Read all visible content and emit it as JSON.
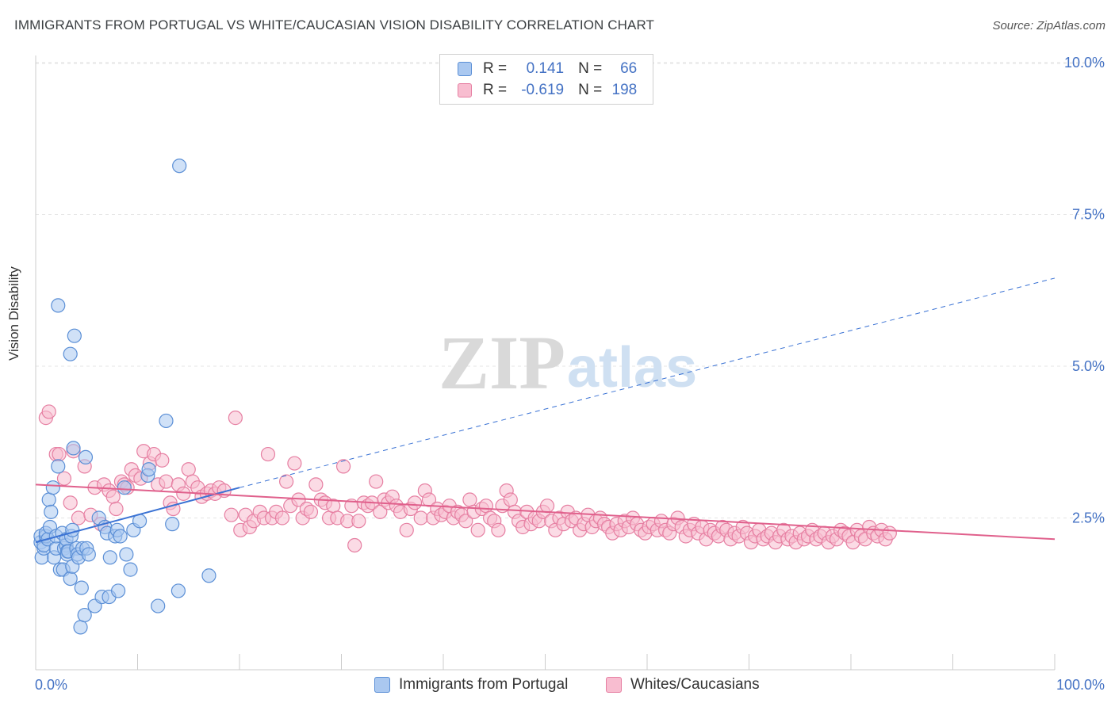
{
  "title": "IMMIGRANTS FROM PORTUGAL VS WHITE/CAUCASIAN VISION DISABILITY CORRELATION CHART",
  "source": "Source: ZipAtlas.com",
  "watermark": {
    "zip": "ZIP",
    "atlas": "atlas"
  },
  "legend": [
    {
      "r_label": "R =",
      "r_value": "0.141",
      "n_label": "N =",
      "n_value": "66",
      "fill": "#aac8f0",
      "stroke": "#5b8fd6"
    },
    {
      "r_label": "R =",
      "r_value": "-0.619",
      "n_label": "N =",
      "n_value": "198",
      "fill": "#f8bdd0",
      "stroke": "#e67fa2"
    }
  ],
  "bottom_legend": [
    "Immigrants from Portugal",
    "Whites/Caucasians"
  ],
  "chart_data": {
    "type": "scatter",
    "title": "IMMIGRANTS FROM PORTUGAL VS WHITE/CAUCASIAN VISION DISABILITY CORRELATION CHART",
    "xlabel": "",
    "ylabel": "Vision Disability",
    "xlim": [
      0,
      100
    ],
    "ylim": [
      0,
      10.5
    ],
    "x_tick_labels": [
      "0.0%",
      "100.0%"
    ],
    "y_ticks": [
      2.5,
      5.0,
      7.5,
      10.0
    ],
    "y_tick_labels": [
      "2.5%",
      "5.0%",
      "7.5%",
      "10.0%"
    ],
    "grid": "horizontal dashed",
    "series": [
      {
        "name": "Immigrants from Portugal",
        "color": "#5b8fd6",
        "fill": "#aac8f0",
        "trend": {
          "x0": 0,
          "y0": 2.1,
          "x1": 20,
          "y1": 3.0,
          "dashed_to_x": 100,
          "dashed_to_y": 6.45
        },
        "points": [
          [
            0.5,
            2.1
          ],
          [
            0.5,
            2.2
          ],
          [
            0.6,
            1.85
          ],
          [
            0.8,
            2.0
          ],
          [
            0.8,
            2.05
          ],
          [
            1.0,
            2.2
          ],
          [
            1.0,
            2.25
          ],
          [
            1.2,
            2.15
          ],
          [
            1.3,
            2.8
          ],
          [
            1.4,
            2.35
          ],
          [
            1.5,
            2.6
          ],
          [
            1.7,
            3.0
          ],
          [
            1.8,
            1.85
          ],
          [
            2.0,
            2.0
          ],
          [
            2.0,
            2.2
          ],
          [
            2.2,
            3.35
          ],
          [
            2.2,
            6.0
          ],
          [
            2.4,
            1.65
          ],
          [
            2.6,
            2.25
          ],
          [
            2.7,
            1.65
          ],
          [
            2.8,
            2.0
          ],
          [
            3.0,
            2.05
          ],
          [
            3.0,
            2.15
          ],
          [
            3.1,
            1.95
          ],
          [
            3.1,
            1.9
          ],
          [
            3.2,
            1.95
          ],
          [
            3.4,
            1.5
          ],
          [
            3.4,
            5.2
          ],
          [
            3.5,
            2.2
          ],
          [
            3.6,
            2.3
          ],
          [
            3.6,
            1.7
          ],
          [
            3.7,
            3.65
          ],
          [
            3.8,
            5.5
          ],
          [
            4.0,
            2.0
          ],
          [
            4.1,
            1.9
          ],
          [
            4.2,
            1.85
          ],
          [
            4.4,
            0.7
          ],
          [
            4.5,
            1.35
          ],
          [
            4.6,
            2.0
          ],
          [
            4.8,
            0.9
          ],
          [
            4.9,
            3.5
          ],
          [
            5.0,
            2.0
          ],
          [
            5.2,
            1.9
          ],
          [
            5.8,
            1.05
          ],
          [
            6.2,
            2.5
          ],
          [
            6.5,
            1.2
          ],
          [
            6.8,
            2.35
          ],
          [
            7.0,
            2.25
          ],
          [
            7.2,
            1.2
          ],
          [
            7.3,
            1.85
          ],
          [
            7.8,
            2.2
          ],
          [
            8.0,
            2.3
          ],
          [
            8.1,
            1.3
          ],
          [
            8.3,
            2.2
          ],
          [
            8.7,
            3.0
          ],
          [
            8.9,
            1.9
          ],
          [
            9.3,
            1.65
          ],
          [
            9.6,
            2.3
          ],
          [
            10.2,
            2.45
          ],
          [
            11.0,
            3.2
          ],
          [
            11.1,
            3.3
          ],
          [
            12.0,
            1.05
          ],
          [
            12.8,
            4.1
          ],
          [
            13.4,
            2.4
          ],
          [
            14.0,
            1.3
          ],
          [
            14.1,
            8.3
          ],
          [
            17.0,
            1.55
          ]
        ]
      },
      {
        "name": "Whites/Caucasians",
        "color": "#e67fa2",
        "fill": "#f8bdd0",
        "trend": {
          "x0": 0,
          "y0": 3.05,
          "x1": 100,
          "y1": 2.15
        },
        "points": [
          [
            1.0,
            4.15
          ],
          [
            1.3,
            4.25
          ],
          [
            2.0,
            3.55
          ],
          [
            2.3,
            3.55
          ],
          [
            2.8,
            3.15
          ],
          [
            3.4,
            2.75
          ],
          [
            3.7,
            3.6
          ],
          [
            4.2,
            2.5
          ],
          [
            4.8,
            3.35
          ],
          [
            5.4,
            2.55
          ],
          [
            5.8,
            3.0
          ],
          [
            6.4,
            2.4
          ],
          [
            6.7,
            3.05
          ],
          [
            7.2,
            2.95
          ],
          [
            7.6,
            2.85
          ],
          [
            7.9,
            2.65
          ],
          [
            8.4,
            3.1
          ],
          [
            8.7,
            3.05
          ],
          [
            9.0,
            3.0
          ],
          [
            9.4,
            3.3
          ],
          [
            9.8,
            3.2
          ],
          [
            10.3,
            3.15
          ],
          [
            10.6,
            3.6
          ],
          [
            11.2,
            3.4
          ],
          [
            11.6,
            3.55
          ],
          [
            12.0,
            3.05
          ],
          [
            12.4,
            3.45
          ],
          [
            12.8,
            3.1
          ],
          [
            13.2,
            2.75
          ],
          [
            13.5,
            2.65
          ],
          [
            14.0,
            3.05
          ],
          [
            14.5,
            2.9
          ],
          [
            15.0,
            3.3
          ],
          [
            15.4,
            3.1
          ],
          [
            15.9,
            3.0
          ],
          [
            16.3,
            2.85
          ],
          [
            16.8,
            2.9
          ],
          [
            17.2,
            2.95
          ],
          [
            17.6,
            2.9
          ],
          [
            18.0,
            3.0
          ],
          [
            18.5,
            2.95
          ],
          [
            19.2,
            2.55
          ],
          [
            19.6,
            4.15
          ],
          [
            20.1,
            2.3
          ],
          [
            20.6,
            2.55
          ],
          [
            21.0,
            2.35
          ],
          [
            21.4,
            2.45
          ],
          [
            22.0,
            2.6
          ],
          [
            22.4,
            2.5
          ],
          [
            22.8,
            3.55
          ],
          [
            23.2,
            2.5
          ],
          [
            23.6,
            2.6
          ],
          [
            24.2,
            2.5
          ],
          [
            24.6,
            3.1
          ],
          [
            25.0,
            2.7
          ],
          [
            25.4,
            3.4
          ],
          [
            25.8,
            2.8
          ],
          [
            26.2,
            2.5
          ],
          [
            26.6,
            2.65
          ],
          [
            27.0,
            2.6
          ],
          [
            27.5,
            3.05
          ],
          [
            28.0,
            2.8
          ],
          [
            28.4,
            2.75
          ],
          [
            28.8,
            2.5
          ],
          [
            29.2,
            2.7
          ],
          [
            29.6,
            2.5
          ],
          [
            30.2,
            3.35
          ],
          [
            30.6,
            2.45
          ],
          [
            31.0,
            2.7
          ],
          [
            31.3,
            2.05
          ],
          [
            31.7,
            2.45
          ],
          [
            32.2,
            2.75
          ],
          [
            32.6,
            2.7
          ],
          [
            33.0,
            2.75
          ],
          [
            33.4,
            3.1
          ],
          [
            33.8,
            2.6
          ],
          [
            34.2,
            2.8
          ],
          [
            34.6,
            2.75
          ],
          [
            35.0,
            2.85
          ],
          [
            35.4,
            2.7
          ],
          [
            35.8,
            2.6
          ],
          [
            36.4,
            2.3
          ],
          [
            36.8,
            2.65
          ],
          [
            37.2,
            2.75
          ],
          [
            37.8,
            2.5
          ],
          [
            38.2,
            2.95
          ],
          [
            38.6,
            2.8
          ],
          [
            39.0,
            2.5
          ],
          [
            39.4,
            2.65
          ],
          [
            39.8,
            2.55
          ],
          [
            40.2,
            2.6
          ],
          [
            40.6,
            2.7
          ],
          [
            41.0,
            2.5
          ],
          [
            41.4,
            2.6
          ],
          [
            41.8,
            2.55
          ],
          [
            42.2,
            2.45
          ],
          [
            42.6,
            2.8
          ],
          [
            43.0,
            2.6
          ],
          [
            43.4,
            2.3
          ],
          [
            43.8,
            2.65
          ],
          [
            44.2,
            2.7
          ],
          [
            44.6,
            2.5
          ],
          [
            45.0,
            2.45
          ],
          [
            45.4,
            2.3
          ],
          [
            45.8,
            2.7
          ],
          [
            46.2,
            2.95
          ],
          [
            46.6,
            2.8
          ],
          [
            47.0,
            2.6
          ],
          [
            47.4,
            2.45
          ],
          [
            47.8,
            2.35
          ],
          [
            48.2,
            2.6
          ],
          [
            48.6,
            2.4
          ],
          [
            49.0,
            2.5
          ],
          [
            49.4,
            2.45
          ],
          [
            49.8,
            2.6
          ],
          [
            50.2,
            2.7
          ],
          [
            50.6,
            2.45
          ],
          [
            51.0,
            2.3
          ],
          [
            51.4,
            2.5
          ],
          [
            51.8,
            2.4
          ],
          [
            52.2,
            2.6
          ],
          [
            52.6,
            2.45
          ],
          [
            53.0,
            2.5
          ],
          [
            53.4,
            2.3
          ],
          [
            53.8,
            2.4
          ],
          [
            54.2,
            2.55
          ],
          [
            54.6,
            2.35
          ],
          [
            55.0,
            2.45
          ],
          [
            55.4,
            2.5
          ],
          [
            55.8,
            2.4
          ],
          [
            56.2,
            2.35
          ],
          [
            56.6,
            2.25
          ],
          [
            57.0,
            2.4
          ],
          [
            57.4,
            2.3
          ],
          [
            57.8,
            2.45
          ],
          [
            58.2,
            2.35
          ],
          [
            58.6,
            2.5
          ],
          [
            59.0,
            2.4
          ],
          [
            59.4,
            2.3
          ],
          [
            59.8,
            2.25
          ],
          [
            60.2,
            2.35
          ],
          [
            60.6,
            2.4
          ],
          [
            61.0,
            2.3
          ],
          [
            61.4,
            2.45
          ],
          [
            61.8,
            2.3
          ],
          [
            62.2,
            2.25
          ],
          [
            62.6,
            2.4
          ],
          [
            63.0,
            2.5
          ],
          [
            63.4,
            2.35
          ],
          [
            63.8,
            2.2
          ],
          [
            64.2,
            2.3
          ],
          [
            64.6,
            2.4
          ],
          [
            65.0,
            2.25
          ],
          [
            65.4,
            2.35
          ],
          [
            65.8,
            2.15
          ],
          [
            66.2,
            2.3
          ],
          [
            66.6,
            2.25
          ],
          [
            67.0,
            2.2
          ],
          [
            67.4,
            2.35
          ],
          [
            67.8,
            2.3
          ],
          [
            68.2,
            2.15
          ],
          [
            68.6,
            2.25
          ],
          [
            69.0,
            2.2
          ],
          [
            69.4,
            2.35
          ],
          [
            69.8,
            2.25
          ],
          [
            70.2,
            2.1
          ],
          [
            70.6,
            2.2
          ],
          [
            71.0,
            2.3
          ],
          [
            71.4,
            2.15
          ],
          [
            71.8,
            2.2
          ],
          [
            72.2,
            2.25
          ],
          [
            72.6,
            2.1
          ],
          [
            73.0,
            2.2
          ],
          [
            73.4,
            2.3
          ],
          [
            73.8,
            2.15
          ],
          [
            74.2,
            2.2
          ],
          [
            74.6,
            2.1
          ],
          [
            75.0,
            2.25
          ],
          [
            75.4,
            2.15
          ],
          [
            75.8,
            2.2
          ],
          [
            76.2,
            2.3
          ],
          [
            76.6,
            2.15
          ],
          [
            77.0,
            2.2
          ],
          [
            77.4,
            2.25
          ],
          [
            77.8,
            2.1
          ],
          [
            78.2,
            2.2
          ],
          [
            78.6,
            2.15
          ],
          [
            79.0,
            2.3
          ],
          [
            79.4,
            2.25
          ],
          [
            79.8,
            2.2
          ],
          [
            80.2,
            2.1
          ],
          [
            80.6,
            2.3
          ],
          [
            81.0,
            2.2
          ],
          [
            81.4,
            2.15
          ],
          [
            81.8,
            2.35
          ],
          [
            82.2,
            2.25
          ],
          [
            82.6,
            2.2
          ],
          [
            83.0,
            2.3
          ],
          [
            83.4,
            2.15
          ],
          [
            83.8,
            2.25
          ]
        ]
      }
    ]
  }
}
